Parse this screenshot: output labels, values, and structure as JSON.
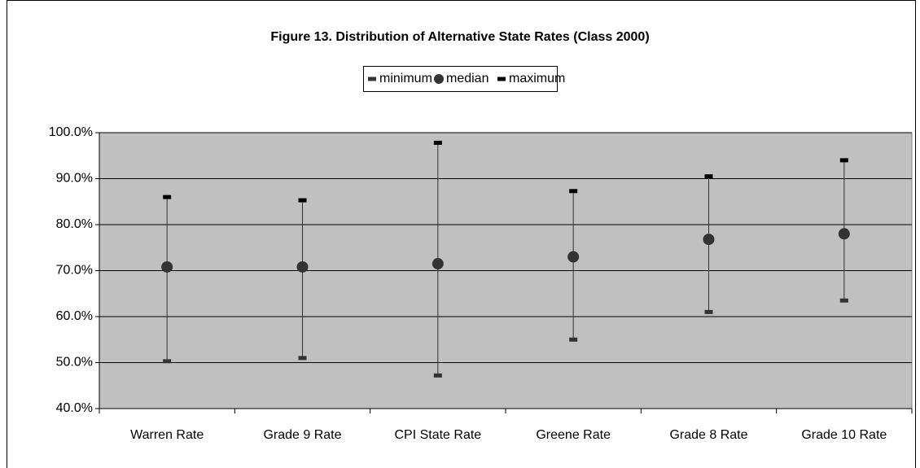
{
  "chart_data": {
    "type": "range",
    "title": "Figure 13. Distribution of Alternative State Rates (Class 2000)",
    "categories": [
      "Warren Rate",
      "Grade 9 Rate",
      "CPI State Rate",
      "Greene Rate",
      "Grade 8 Rate",
      "Grade 10 Rate"
    ],
    "series": [
      {
        "name": "minimum",
        "color": "#333333",
        "values": [
          50.3,
          51.0,
          47.2,
          55.0,
          61.0,
          63.5
        ]
      },
      {
        "name": "median",
        "color": "#333333",
        "values": [
          70.8,
          70.8,
          71.5,
          73.0,
          76.8,
          78.0
        ]
      },
      {
        "name": "maximum",
        "color": "#000000",
        "values": [
          86.0,
          85.3,
          97.8,
          87.3,
          90.5,
          94.0
        ]
      }
    ],
    "ylim": [
      40,
      100
    ],
    "yticks": [
      {
        "value": 40,
        "label": "40.0%"
      },
      {
        "value": 50,
        "label": "50.0%"
      },
      {
        "value": 60,
        "label": "60.0%"
      },
      {
        "value": 70,
        "label": "70.0%"
      },
      {
        "value": 80,
        "label": "80.0%"
      },
      {
        "value": 90,
        "label": "90.0%"
      },
      {
        "value": 100,
        "label": "100.0%"
      }
    ],
    "grid": true,
    "legend": "top",
    "plot_background": "#c0c0c0"
  }
}
